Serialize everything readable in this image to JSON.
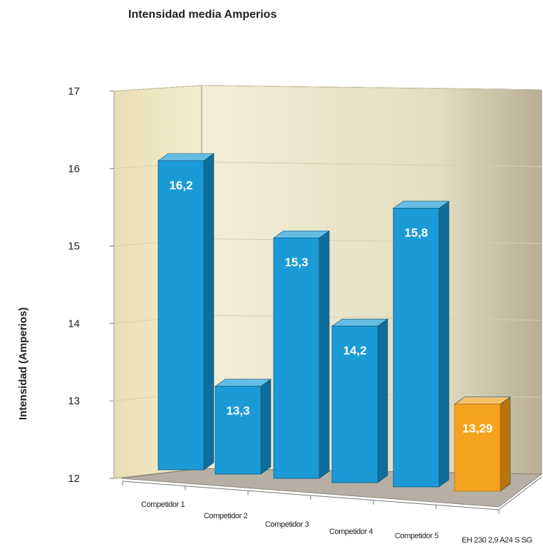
{
  "chart_data": {
    "type": "bar",
    "title": "Intensidad media Amperios",
    "ylabel": "Intensidad (Amperios)",
    "xlabel": "",
    "categories": [
      "Competidor 1",
      "Competidor 2",
      "Competidor 3",
      "Competidor 4",
      "Competidor 5",
      "EH 230 2,9 A24 S SG"
    ],
    "values": [
      16.2,
      13.3,
      15.3,
      14.2,
      15.8,
      13.29
    ],
    "value_labels": [
      "16,2",
      "13,3",
      "15,3",
      "14,2",
      "15,8",
      "13,29"
    ],
    "ylim": [
      12,
      17
    ],
    "y_ticks": [
      "12",
      "13",
      "14",
      "15",
      "16",
      "17"
    ],
    "grid": true,
    "style": "3d",
    "colors": {
      "bar": "#1a9ad6",
      "highlight_bar": "#f5a31f",
      "back_wall": "#ede6c8",
      "floor": "#b5b0a3"
    },
    "highlight_index": 5
  }
}
